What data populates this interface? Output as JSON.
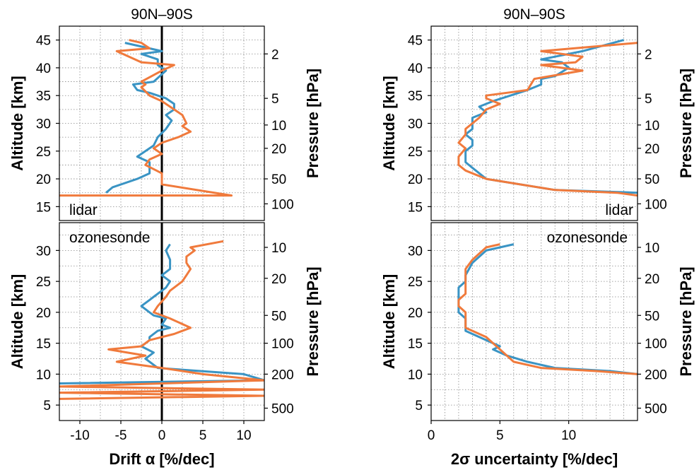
{
  "colors": {
    "blue": "#3a94c4",
    "orange": "#f07a3c",
    "zero_line": "#000000"
  },
  "chart_data": [
    {
      "type": "line",
      "panel": "top-left",
      "title": "90N–90S",
      "annotation": "lidar",
      "ylabel": "Altitude [km]",
      "ylabel_right": "Pressure [hPa]",
      "ylim": [
        12.5,
        47.5
      ],
      "yticks": [
        15,
        20,
        25,
        30,
        35,
        40,
        45
      ],
      "right_ticks": [
        {
          "label": "2",
          "alt": 42.5
        },
        {
          "label": "5",
          "alt": 34.5
        },
        {
          "label": "10",
          "alt": 29.7
        },
        {
          "label": "20",
          "alt": 25.5
        },
        {
          "label": "50",
          "alt": 20
        },
        {
          "label": "100",
          "alt": 15.5
        }
      ],
      "xlim": [
        -12.5,
        12.5
      ],
      "zero_line": true,
      "grid": true,
      "series": [
        {
          "color": "blue",
          "x": [
            -6.8,
            -6,
            -3,
            -1.5,
            -1.5,
            -3,
            -1,
            -0.5,
            0.5,
            1.2,
            0.5,
            1.5,
            1.5,
            1.5,
            0.5,
            -0.5,
            -1.5,
            -3,
            -3.5,
            -1,
            0.5,
            -0.5,
            -0.5,
            -2.5,
            0,
            -4.5
          ],
          "y": [
            17.5,
            18.5,
            20,
            21,
            23,
            24,
            26,
            27.5,
            29,
            30.5,
            31.5,
            32.5,
            33,
            33.5,
            34.5,
            35,
            35.5,
            36,
            37,
            37.5,
            39.5,
            40.5,
            41.5,
            42.5,
            43,
            44.5
          ]
        },
        {
          "color": "orange",
          "x": [
            -12.5,
            8.5,
            0,
            0,
            -2,
            -1.5,
            0,
            -1,
            0,
            2,
            3.5,
            2.5,
            3,
            2.5,
            1.5,
            0,
            -1.5,
            -2.5,
            -2,
            -2.5,
            0,
            1.5,
            -2.5,
            -5.5,
            -1.5,
            -2.5,
            -4
          ],
          "y": [
            17,
            17,
            19,
            21,
            22.5,
            23.5,
            24.5,
            25.5,
            26.5,
            27.5,
            28.5,
            29.5,
            30,
            31.5,
            32.5,
            34,
            35,
            36.5,
            37,
            37.5,
            39.5,
            40.5,
            41,
            43,
            43.5,
            44.5,
            45
          ]
        }
      ]
    },
    {
      "type": "line",
      "panel": "top-right",
      "title": "90N–90S",
      "annotation": "lidar",
      "ylabel": "Altitude [km]",
      "ylabel_right": "Pressure [hPa]",
      "ylim": [
        12.5,
        47.5
      ],
      "yticks": [
        15,
        20,
        25,
        30,
        35,
        40,
        45
      ],
      "right_ticks": [
        {
          "label": "2",
          "alt": 42.5
        },
        {
          "label": "5",
          "alt": 34.5
        },
        {
          "label": "10",
          "alt": 29.7
        },
        {
          "label": "20",
          "alt": 25.5
        },
        {
          "label": "50",
          "alt": 20
        },
        {
          "label": "100",
          "alt": 15.5
        }
      ],
      "xlim": [
        0,
        15
      ],
      "grid": true,
      "series": [
        {
          "color": "blue",
          "x": [
            15,
            9,
            4,
            3.5,
            3,
            2.5,
            2.5,
            2.5,
            3,
            3,
            2.5,
            3,
            3,
            4,
            3.5,
            4.5,
            7,
            8,
            8,
            9,
            10,
            9.5,
            8,
            9,
            11,
            14
          ],
          "y": [
            17.5,
            18,
            20,
            21,
            22,
            23,
            24,
            25,
            26,
            27,
            28,
            29,
            31,
            32,
            33,
            34,
            36,
            37,
            38,
            38.5,
            40,
            41,
            41.5,
            42,
            43,
            45
          ]
        },
        {
          "color": "orange",
          "x": [
            15,
            13.5,
            9,
            4,
            2.5,
            2,
            2,
            2.5,
            2,
            2.5,
            2.5,
            3,
            3.5,
            4,
            5,
            4,
            4,
            5.5,
            7,
            7.5,
            11,
            8,
            10.5,
            11,
            8,
            15
          ],
          "y": [
            17,
            17.5,
            18,
            20,
            21.5,
            22.5,
            24,
            25.5,
            26.5,
            28,
            29,
            30,
            31,
            32.5,
            33.5,
            34.5,
            35,
            35.5,
            36,
            38,
            39.5,
            40.5,
            41,
            42,
            43,
            44.5
          ]
        }
      ]
    },
    {
      "type": "line",
      "panel": "bottom-left",
      "annotation": "ozonesonde",
      "ylabel": "Altitude [km]",
      "ylabel_right": "Pressure [hPa]",
      "ylim": [
        2.5,
        34.5
      ],
      "yticks": [
        5,
        10,
        15,
        20,
        25,
        30
      ],
      "right_ticks": [
        {
          "label": "10",
          "alt": 30.5
        },
        {
          "label": "20",
          "alt": 25.5
        },
        {
          "label": "50",
          "alt": 19.5
        },
        {
          "label": "100",
          "alt": 15
        },
        {
          "label": "200",
          "alt": 10
        },
        {
          "label": "500",
          "alt": 4.5
        }
      ],
      "xlim": [
        -12.5,
        12.5
      ],
      "zero_line": true,
      "grid": true,
      "xticks": [
        -10,
        -5,
        0,
        5,
        10
      ],
      "xlabel": "Drift α [%/dec]",
      "series": [
        {
          "color": "blue",
          "x": [
            -12.5,
            12.5,
            10,
            -0.5,
            -2,
            -1,
            -2.5,
            -1.5,
            -1.5,
            -0.5,
            1,
            0,
            0.5,
            -1,
            -1.5,
            -2.5,
            -1.5,
            -1,
            0.5,
            1,
            0,
            1,
            1,
            0.5,
            1
          ],
          "y": [
            8.5,
            9,
            10,
            11,
            12.5,
            13.5,
            14.5,
            15.5,
            16,
            17,
            17.5,
            18,
            19,
            19.5,
            20,
            21,
            22,
            22.5,
            24,
            25,
            26,
            27,
            28.5,
            30,
            31
          ]
        },
        {
          "color": "orange",
          "x": [
            -12.5,
            12.5,
            -12.5,
            12.5,
            -12.5,
            12.5,
            5,
            0,
            -5.5,
            -2,
            -6.5,
            -2.5,
            -1.5,
            1.5,
            3.5,
            1,
            -1,
            -0.5,
            0.5,
            1,
            2.5,
            3,
            3.5,
            3,
            3,
            4,
            3.5,
            7.5
          ],
          "y": [
            6,
            6.5,
            7,
            7.5,
            8,
            9,
            10,
            11,
            12,
            13,
            14,
            14.5,
            15.5,
            16.5,
            17.5,
            19,
            20,
            21,
            22.5,
            23.5,
            25,
            26,
            27,
            28,
            29,
            30,
            30.5,
            31.5
          ]
        }
      ]
    },
    {
      "type": "line",
      "panel": "bottom-right",
      "annotation": "ozonesonde",
      "ylabel": "Altitude [km]",
      "ylabel_right": "Pressure [hPa]",
      "ylim": [
        2.5,
        34.5
      ],
      "yticks": [
        5,
        10,
        15,
        20,
        25,
        30
      ],
      "right_ticks": [
        {
          "label": "10",
          "alt": 30.5
        },
        {
          "label": "20",
          "alt": 25.5
        },
        {
          "label": "50",
          "alt": 19.5
        },
        {
          "label": "100",
          "alt": 15
        },
        {
          "label": "200",
          "alt": 10
        },
        {
          "label": "500",
          "alt": 4.5
        }
      ],
      "xlim": [
        0,
        15
      ],
      "grid": true,
      "xticks": [
        0,
        5,
        10
      ],
      "xlabel": "2σ uncertainty [%/dec]",
      "series": [
        {
          "color": "blue",
          "x": [
            15,
            13,
            9,
            7,
            5.5,
            5,
            4.5,
            5,
            4.5,
            3,
            2.5,
            2.5,
            2.5,
            2,
            2,
            2,
            2,
            2.5,
            2.5,
            3,
            4,
            6
          ],
          "y": [
            10,
            10.5,
            11,
            12,
            13,
            13.5,
            14,
            14.5,
            15,
            16.5,
            17,
            18,
            19,
            20,
            21,
            22.5,
            24,
            25,
            26,
            28,
            30,
            31
          ]
        },
        {
          "color": "orange",
          "x": [
            15,
            12,
            8,
            6,
            5.5,
            4,
            3,
            2.5,
            2.5,
            2.5,
            2,
            2,
            2.5,
            2.5,
            2.5,
            3,
            4,
            5
          ],
          "y": [
            10,
            10.5,
            11,
            12,
            13,
            16,
            17,
            17.5,
            18.5,
            20,
            21,
            22,
            23,
            25,
            27,
            28.5,
            30.5,
            31
          ]
        }
      ]
    }
  ]
}
